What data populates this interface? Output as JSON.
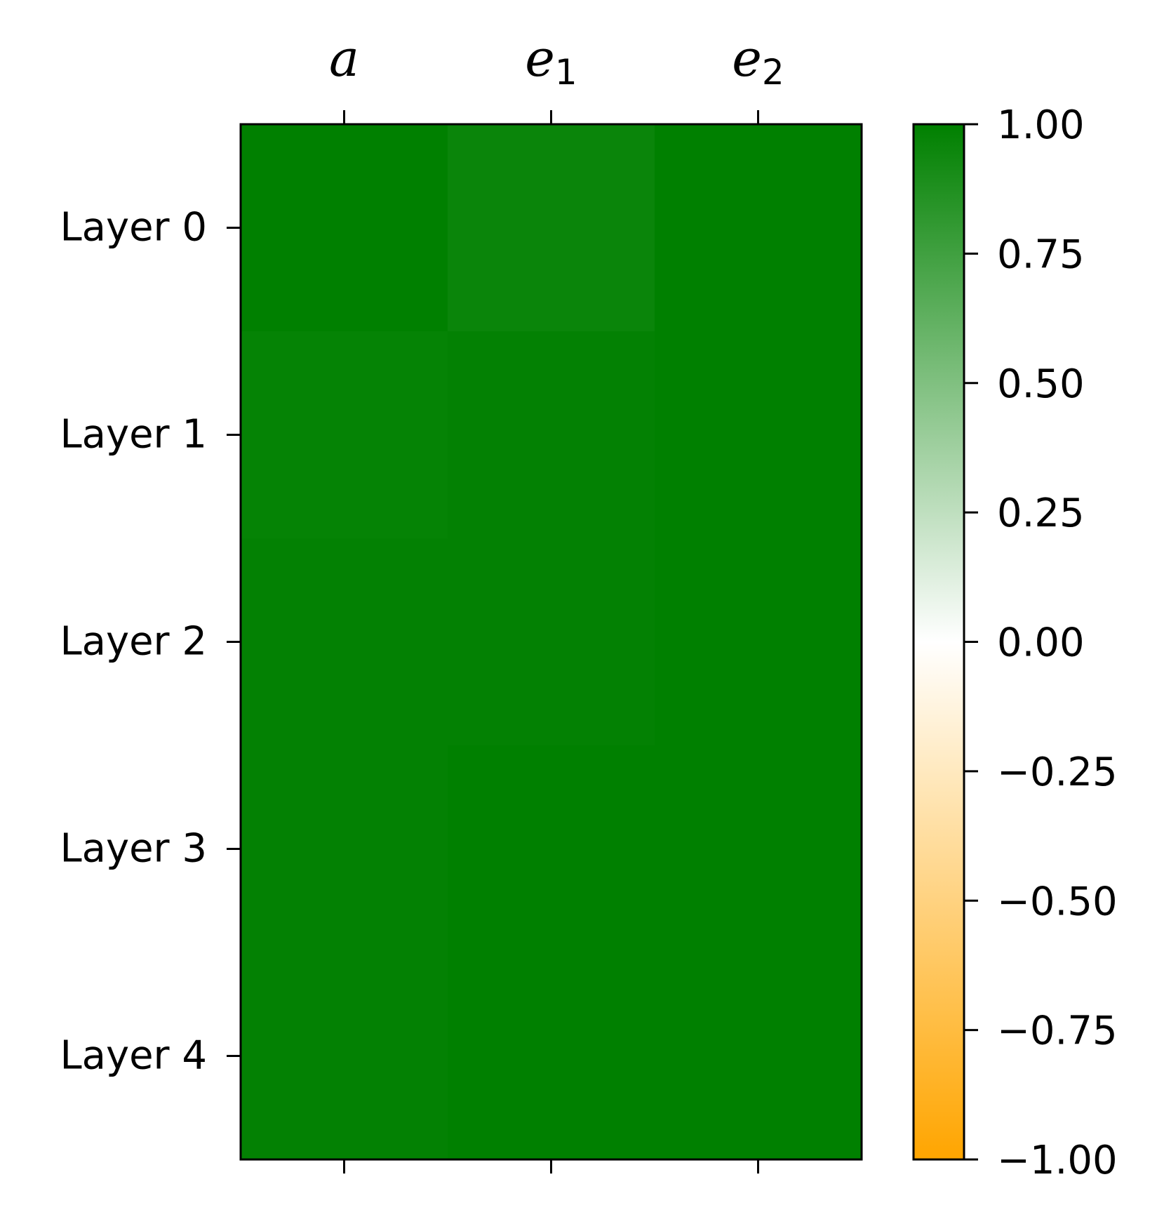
{
  "chart_data": {
    "type": "heatmap",
    "title": "",
    "columns": [
      {
        "base": "a",
        "sub": ""
      },
      {
        "base": "e",
        "sub": "1"
      },
      {
        "base": "e",
        "sub": "2"
      }
    ],
    "rows": [
      "Layer 0",
      "Layer 1",
      "Layer 2",
      "Layer 3",
      "Layer 4"
    ],
    "values": [
      [
        1.0,
        0.96,
        1.0
      ],
      [
        0.98,
        0.99,
        1.0
      ],
      [
        0.99,
        0.99,
        1.0
      ],
      [
        0.99,
        1.0,
        1.0
      ],
      [
        0.99,
        1.0,
        1.0
      ]
    ],
    "colorbar": {
      "range": [
        -1.0,
        1.0
      ],
      "ticks": [
        "1.00",
        "0.75",
        "0.50",
        "0.25",
        "0.00",
        "−0.25",
        "−0.50",
        "−0.75",
        "−1.00"
      ],
      "tick_values": [
        1.0,
        0.75,
        0.5,
        0.25,
        0.0,
        -0.25,
        -0.5,
        -0.75,
        -1.0
      ],
      "colors": {
        "low": "#ffa500",
        "mid": "#ffffff",
        "high": "#008000"
      }
    },
    "x_tick_position": "top",
    "legend": "colorbar-right"
  }
}
